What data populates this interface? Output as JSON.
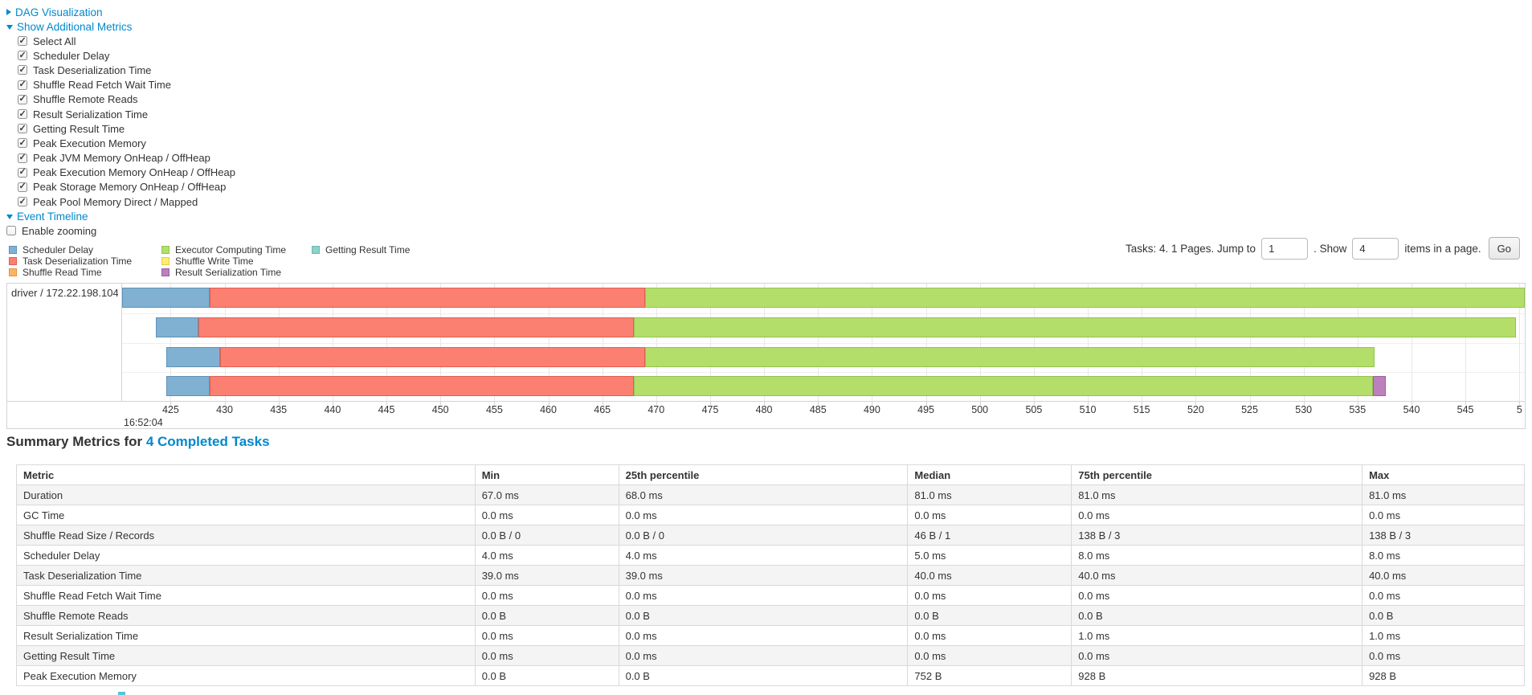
{
  "colors": {
    "link": "#0088cc",
    "segment_fill": {
      "scheduler-delay": "#80B1D3",
      "task-deserialization": "#FB8072",
      "shuffle-read": "#FDB462",
      "executor-computing": "#B3DE69",
      "shuffle-write": "#FFED6F",
      "result-serialization": "#BC80BD",
      "getting-result": "#8DD3C7"
    },
    "segment_border": {
      "scheduler-delay": "#5E91B6",
      "task-deserialization": "#E05F52",
      "shuffle-read": "#E09545",
      "executor-computing": "#93C353",
      "shuffle-write": "#E3CD4E",
      "result-serialization": "#9E5FA0",
      "getting-result": "#6FB8AA"
    },
    "stripe": "#f4f4f4"
  },
  "toggles": {
    "dag": {
      "label": "DAG Visualization",
      "state": "collapsed"
    },
    "metrics": {
      "label": "Show Additional Metrics",
      "state": "expanded"
    },
    "timeline": {
      "label": "Event Timeline",
      "state": "expanded"
    }
  },
  "metric_checkboxes": [
    "Select All",
    "Scheduler Delay",
    "Task Deserialization Time",
    "Shuffle Read Fetch Wait Time",
    "Shuffle Remote Reads",
    "Result Serialization Time",
    "Getting Result Time",
    "Peak Execution Memory",
    "Peak JVM Memory OnHeap / OffHeap",
    "Peak Execution Memory OnHeap / OffHeap",
    "Peak Storage Memory OnHeap / OffHeap",
    "Peak Pool Memory Direct / Mapped"
  ],
  "enable_zooming_label": "Enable zooming",
  "legend": {
    "columns": [
      [
        {
          "type": "scheduler-delay",
          "label": "Scheduler Delay"
        },
        {
          "type": "task-deserialization",
          "label": "Task Deserialization Time"
        },
        {
          "type": "shuffle-read",
          "label": "Shuffle Read Time"
        }
      ],
      [
        {
          "type": "executor-computing",
          "label": "Executor Computing Time"
        },
        {
          "type": "shuffle-write",
          "label": "Shuffle Write Time"
        },
        {
          "type": "result-serialization",
          "label": "Result Serialization Time"
        }
      ],
      [
        {
          "type": "getting-result",
          "label": "Getting Result Time"
        }
      ]
    ]
  },
  "pagination": {
    "prefix_text": "Tasks: 4. 1 Pages. Jump to",
    "jump_value": "1",
    "show_text": ". Show",
    "show_value": "4",
    "suffix_text": "items in a page.",
    "go_label": "Go"
  },
  "timeline": {
    "group_label": "driver / 172.22.198.104",
    "axis": {
      "min": 420.5,
      "max": 550.5,
      "time_label": "16:52:04",
      "ticks": [
        {
          "t": 425,
          "label": "425"
        },
        {
          "t": 430,
          "label": "430"
        },
        {
          "t": 435,
          "label": "435"
        },
        {
          "t": 440,
          "label": "440"
        },
        {
          "t": 445,
          "label": "445"
        },
        {
          "t": 450,
          "label": "450"
        },
        {
          "t": 455,
          "label": "455"
        },
        {
          "t": 460,
          "label": "460"
        },
        {
          "t": 465,
          "label": "465"
        },
        {
          "t": 470,
          "label": "470"
        },
        {
          "t": 475,
          "label": "475"
        },
        {
          "t": 480,
          "label": "480"
        },
        {
          "t": 485,
          "label": "485"
        },
        {
          "t": 490,
          "label": "490"
        },
        {
          "t": 495,
          "label": "495"
        },
        {
          "t": 500,
          "label": "500"
        },
        {
          "t": 505,
          "label": "505"
        },
        {
          "t": 510,
          "label": "510"
        },
        {
          "t": 515,
          "label": "515"
        },
        {
          "t": 520,
          "label": "520"
        },
        {
          "t": 525,
          "label": "525"
        },
        {
          "t": 530,
          "label": "530"
        },
        {
          "t": 535,
          "label": "535"
        },
        {
          "t": 540,
          "label": "540"
        },
        {
          "t": 545,
          "label": "545"
        },
        {
          "t": 550,
          "label": "5"
        }
      ]
    },
    "tasks": [
      {
        "segments": [
          {
            "type": "scheduler-delay",
            "start": 420.5,
            "end": 428.6
          },
          {
            "type": "task-deserialization",
            "start": 428.6,
            "end": 469.0
          },
          {
            "type": "executor-computing",
            "start": 469.0,
            "end": 550.5
          }
        ]
      },
      {
        "segments": [
          {
            "type": "scheduler-delay",
            "start": 423.6,
            "end": 427.6
          },
          {
            "type": "task-deserialization",
            "start": 427.6,
            "end": 467.9
          },
          {
            "type": "executor-computing",
            "start": 467.9,
            "end": 549.7
          }
        ]
      },
      {
        "segments": [
          {
            "type": "scheduler-delay",
            "start": 424.6,
            "end": 429.6
          },
          {
            "type": "task-deserialization",
            "start": 429.6,
            "end": 469.0
          },
          {
            "type": "executor-computing",
            "start": 469.0,
            "end": 536.6
          }
        ]
      },
      {
        "segments": [
          {
            "type": "scheduler-delay",
            "start": 424.6,
            "end": 428.6
          },
          {
            "type": "task-deserialization",
            "start": 428.6,
            "end": 467.9
          },
          {
            "type": "executor-computing",
            "start": 467.9,
            "end": 536.4
          },
          {
            "type": "result-serialization",
            "start": 536.4,
            "end": 537.6
          }
        ]
      }
    ]
  },
  "summary": {
    "title_prefix": "Summary Metrics for ",
    "title_link": "4 Completed Tasks",
    "table": {
      "headers": [
        "Metric",
        "Min",
        "25th percentile",
        "Median",
        "75th percentile",
        "Max"
      ],
      "rows": [
        {
          "metric": "Duration",
          "values": [
            "67.0 ms",
            "68.0 ms",
            "81.0 ms",
            "81.0 ms",
            "81.0 ms"
          ]
        },
        {
          "metric": "GC Time",
          "values": [
            "0.0 ms",
            "0.0 ms",
            "0.0 ms",
            "0.0 ms",
            "0.0 ms"
          ]
        },
        {
          "metric": "Shuffle Read Size / Records",
          "values": [
            "0.0 B / 0",
            "0.0 B / 0",
            "46 B / 1",
            "138 B / 3",
            "138 B / 3"
          ]
        },
        {
          "metric": "Scheduler Delay",
          "values": [
            "4.0 ms",
            "4.0 ms",
            "5.0 ms",
            "8.0 ms",
            "8.0 ms"
          ]
        },
        {
          "metric": "Task Deserialization Time",
          "values": [
            "39.0 ms",
            "39.0 ms",
            "40.0 ms",
            "40.0 ms",
            "40.0 ms"
          ]
        },
        {
          "metric": "Shuffle Read Fetch Wait Time",
          "values": [
            "0.0 ms",
            "0.0 ms",
            "0.0 ms",
            "0.0 ms",
            "0.0 ms"
          ]
        },
        {
          "metric": "Shuffle Remote Reads",
          "values": [
            "0.0 B",
            "0.0 B",
            "0.0 B",
            "0.0 B",
            "0.0 B"
          ]
        },
        {
          "metric": "Result Serialization Time",
          "values": [
            "0.0 ms",
            "0.0 ms",
            "0.0 ms",
            "1.0 ms",
            "1.0 ms"
          ]
        },
        {
          "metric": "Getting Result Time",
          "values": [
            "0.0 ms",
            "0.0 ms",
            "0.0 ms",
            "0.0 ms",
            "0.0 ms"
          ]
        },
        {
          "metric": "Peak Execution Memory",
          "values": [
            "0.0 B",
            "0.0 B",
            "752 B",
            "928 B",
            "928 B"
          ]
        }
      ]
    }
  }
}
